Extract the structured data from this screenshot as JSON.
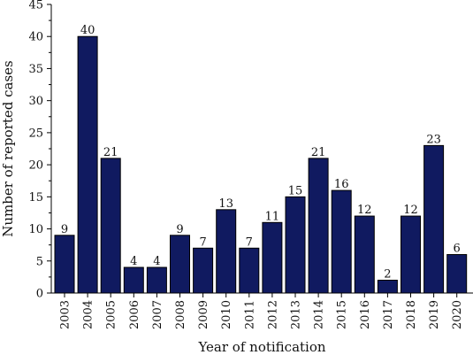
{
  "chart_data": {
    "type": "bar",
    "xlabel": "Year of notification",
    "ylabel": "Number of reported cases",
    "ylim": [
      0,
      45
    ],
    "yticks": [
      0,
      5,
      10,
      15,
      20,
      25,
      30,
      35,
      40,
      45
    ],
    "categories": [
      "2003",
      "2004",
      "2005",
      "2006",
      "2007",
      "2008",
      "2009",
      "2010",
      "2011",
      "2012",
      "2013",
      "2014",
      "2015",
      "2016",
      "2017",
      "2018",
      "2019",
      "2020"
    ],
    "values": [
      9,
      40,
      21,
      4,
      4,
      9,
      7,
      13,
      7,
      11,
      15,
      21,
      16,
      12,
      2,
      12,
      23,
      6
    ],
    "bar_color": "#101a60",
    "bar_stroke": "#000000",
    "grid": false,
    "data_labels": true
  }
}
